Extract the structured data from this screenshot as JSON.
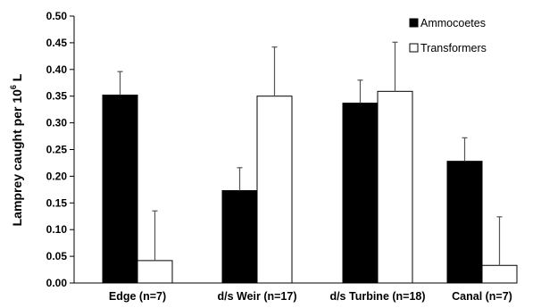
{
  "chart_data": {
    "type": "bar",
    "ylabel_main": "Lamprey caught per 10",
    "ylabel_sup": "6",
    "ylabel_tail": " L",
    "ylim": [
      0,
      0.5
    ],
    "yticks": [
      "0.00",
      "0.05",
      "0.10",
      "0.15",
      "0.20",
      "0.25",
      "0.30",
      "0.35",
      "0.40",
      "0.45",
      "0.50"
    ],
    "categories": [
      "Edge (n=7)",
      "d/s Weir (n=17)",
      "d/s Turbine (n=18)",
      "Canal (n=7)"
    ],
    "series": [
      {
        "name": "Ammocoetes",
        "color": "#000000",
        "values": [
          0.352,
          0.173,
          0.337,
          0.228
        ],
        "errors": [
          0.044,
          0.043,
          0.043,
          0.044
        ]
      },
      {
        "name": "Transformers",
        "color": "#ffffff",
        "values": [
          0.042,
          0.35,
          0.359,
          0.033
        ],
        "errors": [
          0.093,
          0.092,
          0.092,
          0.091
        ]
      }
    ],
    "legend_position": "top-right",
    "grid": false
  }
}
